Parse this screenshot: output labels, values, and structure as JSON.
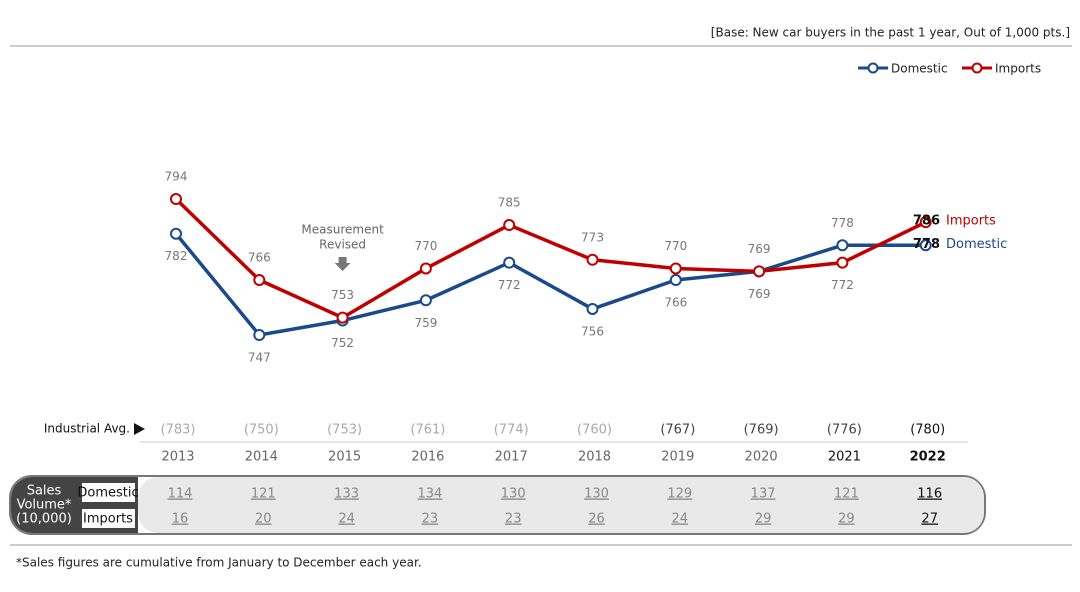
{
  "chart_data": {
    "type": "line",
    "base_note": "[Base: New car buyers in the past 1 year, Out of 1,000 pts.]",
    "categories": [
      "2013",
      "2014",
      "2015",
      "2016",
      "2017",
      "2018",
      "2019",
      "2020",
      "2021",
      "2022"
    ],
    "series": [
      {
        "name": "Domestic",
        "color": "#1b4a8c",
        "values": [
          782,
          747,
          752,
          759,
          772,
          756,
          766,
          769,
          778,
          778
        ]
      },
      {
        "name": "Imports",
        "color": "#c00000",
        "values": [
          794,
          766,
          753,
          770,
          785,
          773,
          770,
          769,
          772,
          786
        ]
      }
    ],
    "legend": "top-right",
    "annotation": {
      "lines": [
        "Measurement",
        "Revised"
      ],
      "category": "2015"
    },
    "industrial_avg": {
      "label": "Industrial Avg.",
      "values": [
        783,
        750,
        753,
        761,
        774,
        760,
        767,
        769,
        776,
        780
      ],
      "value_labels": [
        "(783)",
        "(750)",
        "(753)",
        "(761)",
        "(774)",
        "(760)",
        "(767)",
        "(769)",
        "(776)",
        "(780)"
      ]
    },
    "sales_volume": {
      "label_lines": [
        "Sales",
        "Volume*",
        "(10,000)"
      ],
      "rows": [
        [
          114,
          121,
          133,
          134,
          130,
          130,
          129,
          137,
          121,
          116
        ],
        [
          16,
          20,
          24,
          23,
          23,
          26,
          24,
          29,
          29,
          27
        ]
      ]
    },
    "footnote": "*Sales figures are cumulative from January to December each year."
  }
}
